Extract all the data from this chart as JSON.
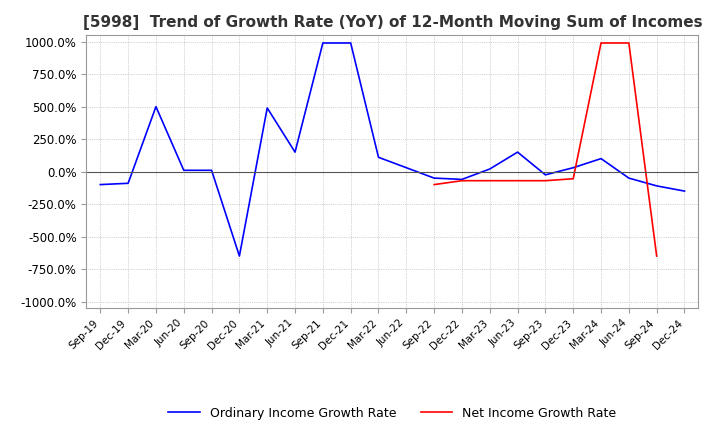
{
  "title": "[5998]  Trend of Growth Rate (YoY) of 12-Month Moving Sum of Incomes",
  "title_fontsize": 11,
  "ylim": [
    -1050,
    1050
  ],
  "yticks": [
    -1000,
    -750,
    -500,
    -250,
    0,
    250,
    500,
    750,
    1000
  ],
  "background_color": "#ffffff",
  "grid_color": "#aaaaaa",
  "ordinary_color": "#0000ff",
  "net_color": "#ff0000",
  "legend_labels": [
    "Ordinary Income Growth Rate",
    "Net Income Growth Rate"
  ],
  "x_labels": [
    "Sep-19",
    "Dec-19",
    "Mar-20",
    "Jun-20",
    "Sep-20",
    "Dec-20",
    "Mar-21",
    "Jun-21",
    "Sep-21",
    "Dec-21",
    "Mar-22",
    "Jun-22",
    "Sep-22",
    "Dec-22",
    "Mar-23",
    "Jun-23",
    "Sep-23",
    "Dec-23",
    "Mar-24",
    "Jun-24",
    "Sep-24",
    "Dec-24"
  ],
  "ordinary_y": [
    -100,
    -90,
    500,
    10,
    10,
    -650,
    490,
    150,
    990,
    990,
    110,
    30,
    -50,
    -60,
    20,
    150,
    -25,
    30,
    100,
    -50,
    -110,
    -150
  ],
  "net_y": [
    null,
    null,
    null,
    null,
    null,
    null,
    null,
    null,
    null,
    null,
    null,
    null,
    -100,
    -70,
    -70,
    -70,
    -70,
    -55,
    990,
    990,
    -650,
    null
  ]
}
